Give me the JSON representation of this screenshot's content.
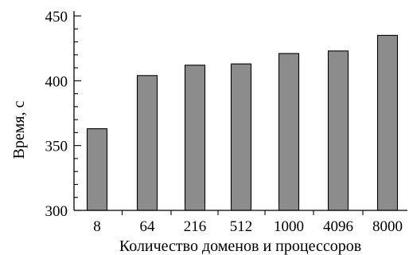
{
  "chart_data": {
    "type": "bar",
    "title": "",
    "xlabel": "Количество доменов и процессоров",
    "ylabel": "Время, с",
    "categories": [
      "8",
      "64",
      "216",
      "512",
      "1000",
      "4096",
      "8000"
    ],
    "values": [
      363,
      404,
      412,
      413,
      421,
      423,
      435
    ],
    "ylim": [
      300,
      450
    ],
    "yticks": [
      "300",
      "350",
      "400",
      "450"
    ],
    "grid": false,
    "legend": "none",
    "colors": {
      "bar": "#8c8c8c",
      "edge": "#000000"
    }
  }
}
